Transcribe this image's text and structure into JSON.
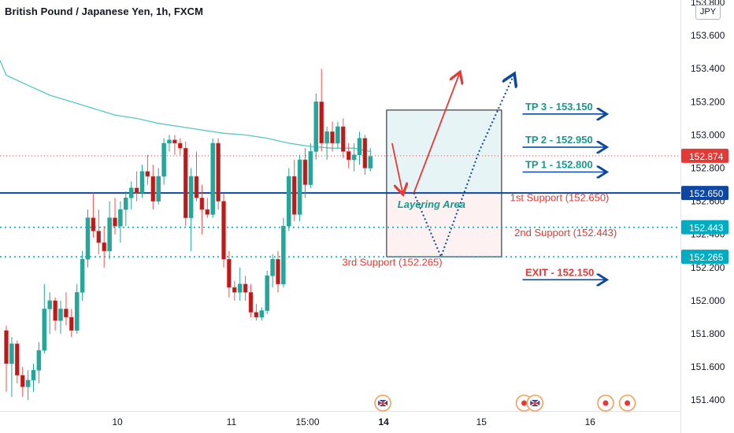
{
  "header": {
    "title": "British Pound / Japanese Yen, 1h, FXCM",
    "currency": "JPY"
  },
  "colors": {
    "up": "#26a69a",
    "down": "#ef5350",
    "candle_body_up": "#26a69a",
    "candle_body_down": "#b71c1c",
    "ma": "#55c7c2",
    "blue": "#0d47a1",
    "red": "#e53935",
    "teal_text": "#17998c",
    "support_text": "#e53935"
  },
  "chart_data": {
    "type": "candlestick",
    "y_axis": {
      "min": 151.4,
      "max": 153.8,
      "ticks": [
        151.4,
        151.6,
        151.8,
        152.0,
        152.2,
        152.4,
        152.6,
        152.8,
        153.0,
        153.2,
        153.4,
        153.6,
        153.8
      ],
      "tick_labels": [
        "151.400",
        "151.600",
        "151.800",
        "152.000",
        "152.200",
        "152.400",
        "152.600",
        "152.800",
        "153.000",
        "153.200",
        "153.400",
        "153.600",
        "153.800"
      ]
    },
    "x_axis": {
      "labels": [
        {
          "text": "10",
          "t": 20
        },
        {
          "text": "11",
          "t": 41
        },
        {
          "text": "15:00",
          "t": 55
        },
        {
          "text": "14",
          "t": 69
        },
        {
          "text": "15",
          "t": 87
        },
        {
          "text": "16",
          "t": 107
        }
      ],
      "t_min": 0,
      "t_max": 126
    },
    "candles": [
      {
        "t": 0,
        "o": 151.82,
        "h": 151.85,
        "l": 151.45,
        "c": 151.62
      },
      {
        "t": 1,
        "o": 151.62,
        "h": 151.78,
        "l": 151.42,
        "c": 151.74
      },
      {
        "t": 2,
        "o": 151.74,
        "h": 151.76,
        "l": 151.5,
        "c": 151.55
      },
      {
        "t": 3,
        "o": 151.55,
        "h": 151.6,
        "l": 151.42,
        "c": 151.48
      },
      {
        "t": 4,
        "o": 151.48,
        "h": 151.58,
        "l": 151.4,
        "c": 151.52
      },
      {
        "t": 5,
        "o": 151.52,
        "h": 151.62,
        "l": 151.45,
        "c": 151.58
      },
      {
        "t": 6,
        "o": 151.58,
        "h": 151.75,
        "l": 151.5,
        "c": 151.7
      },
      {
        "t": 7,
        "o": 151.7,
        "h": 152.1,
        "l": 151.68,
        "c": 151.95
      },
      {
        "t": 8,
        "o": 151.95,
        "h": 152.05,
        "l": 151.8,
        "c": 152.0
      },
      {
        "t": 9,
        "o": 152.0,
        "h": 152.02,
        "l": 151.82,
        "c": 151.88
      },
      {
        "t": 10,
        "o": 151.88,
        "h": 152.0,
        "l": 151.8,
        "c": 151.95
      },
      {
        "t": 11,
        "o": 151.95,
        "h": 152.05,
        "l": 151.85,
        "c": 151.9
      },
      {
        "t": 12,
        "o": 151.9,
        "h": 151.95,
        "l": 151.78,
        "c": 151.82
      },
      {
        "t": 13,
        "o": 151.82,
        "h": 152.1,
        "l": 151.8,
        "c": 152.05
      },
      {
        "t": 14,
        "o": 152.05,
        "h": 152.3,
        "l": 152.0,
        "c": 152.25
      },
      {
        "t": 15,
        "o": 152.25,
        "h": 152.55,
        "l": 152.2,
        "c": 152.5
      },
      {
        "t": 16,
        "o": 152.5,
        "h": 152.65,
        "l": 152.38,
        "c": 152.42
      },
      {
        "t": 17,
        "o": 152.42,
        "h": 152.55,
        "l": 152.28,
        "c": 152.35
      },
      {
        "t": 18,
        "o": 152.35,
        "h": 152.45,
        "l": 152.2,
        "c": 152.3
      },
      {
        "t": 19,
        "o": 152.3,
        "h": 152.6,
        "l": 152.25,
        "c": 152.5
      },
      {
        "t": 20,
        "o": 152.5,
        "h": 152.62,
        "l": 152.4,
        "c": 152.45
      },
      {
        "t": 21,
        "o": 152.45,
        "h": 152.6,
        "l": 152.35,
        "c": 152.55
      },
      {
        "t": 22,
        "o": 152.55,
        "h": 152.66,
        "l": 152.45,
        "c": 152.62
      },
      {
        "t": 23,
        "o": 152.62,
        "h": 152.72,
        "l": 152.55,
        "c": 152.68
      },
      {
        "t": 24,
        "o": 152.68,
        "h": 152.78,
        "l": 152.6,
        "c": 152.65
      },
      {
        "t": 25,
        "o": 152.65,
        "h": 152.82,
        "l": 152.62,
        "c": 152.78
      },
      {
        "t": 26,
        "o": 152.78,
        "h": 152.88,
        "l": 152.7,
        "c": 152.75
      },
      {
        "t": 27,
        "o": 152.75,
        "h": 152.82,
        "l": 152.55,
        "c": 152.6
      },
      {
        "t": 28,
        "o": 152.6,
        "h": 152.8,
        "l": 152.58,
        "c": 152.75
      },
      {
        "t": 29,
        "o": 152.75,
        "h": 152.98,
        "l": 152.7,
        "c": 152.95
      },
      {
        "t": 30,
        "o": 152.95,
        "h": 153.0,
        "l": 152.9,
        "c": 152.97
      },
      {
        "t": 31,
        "o": 152.97,
        "h": 153.0,
        "l": 152.88,
        "c": 152.95
      },
      {
        "t": 32,
        "o": 152.95,
        "h": 152.98,
        "l": 152.88,
        "c": 152.92
      },
      {
        "t": 33,
        "o": 152.92,
        "h": 152.96,
        "l": 152.45,
        "c": 152.5
      },
      {
        "t": 34,
        "o": 152.5,
        "h": 152.8,
        "l": 152.3,
        "c": 152.75
      },
      {
        "t": 35,
        "o": 152.75,
        "h": 152.9,
        "l": 152.6,
        "c": 152.62
      },
      {
        "t": 36,
        "o": 152.62,
        "h": 152.7,
        "l": 152.4,
        "c": 152.55
      },
      {
        "t": 37,
        "o": 152.55,
        "h": 152.62,
        "l": 152.5,
        "c": 152.52
      },
      {
        "t": 38,
        "o": 152.52,
        "h": 152.98,
        "l": 152.5,
        "c": 152.95
      },
      {
        "t": 39,
        "o": 152.95,
        "h": 152.98,
        "l": 152.55,
        "c": 152.6
      },
      {
        "t": 40,
        "o": 152.6,
        "h": 152.65,
        "l": 152.2,
        "c": 152.25
      },
      {
        "t": 41,
        "o": 152.25,
        "h": 152.3,
        "l": 152.02,
        "c": 152.08
      },
      {
        "t": 42,
        "o": 152.08,
        "h": 152.12,
        "l": 152.0,
        "c": 152.05
      },
      {
        "t": 43,
        "o": 152.05,
        "h": 152.2,
        "l": 152.0,
        "c": 152.1
      },
      {
        "t": 44,
        "o": 152.1,
        "h": 152.15,
        "l": 152.0,
        "c": 152.05
      },
      {
        "t": 45,
        "o": 152.05,
        "h": 152.1,
        "l": 151.9,
        "c": 151.93
      },
      {
        "t": 46,
        "o": 151.93,
        "h": 151.98,
        "l": 151.88,
        "c": 151.9
      },
      {
        "t": 47,
        "o": 151.9,
        "h": 151.96,
        "l": 151.88,
        "c": 151.94
      },
      {
        "t": 48,
        "o": 151.94,
        "h": 152.18,
        "l": 151.92,
        "c": 152.15
      },
      {
        "t": 49,
        "o": 152.15,
        "h": 152.28,
        "l": 152.08,
        "c": 152.25
      },
      {
        "t": 50,
        "o": 152.25,
        "h": 152.3,
        "l": 152.05,
        "c": 152.1
      },
      {
        "t": 51,
        "o": 152.1,
        "h": 152.5,
        "l": 152.08,
        "c": 152.45
      },
      {
        "t": 52,
        "o": 152.45,
        "h": 152.8,
        "l": 152.42,
        "c": 152.75
      },
      {
        "t": 53,
        "o": 152.75,
        "h": 152.85,
        "l": 152.48,
        "c": 152.52
      },
      {
        "t": 54,
        "o": 152.52,
        "h": 152.88,
        "l": 152.48,
        "c": 152.85
      },
      {
        "t": 55,
        "o": 152.85,
        "h": 152.92,
        "l": 152.62,
        "c": 152.7
      },
      {
        "t": 56,
        "o": 152.7,
        "h": 152.95,
        "l": 152.68,
        "c": 152.9
      },
      {
        "t": 57,
        "o": 152.9,
        "h": 153.25,
        "l": 152.85,
        "c": 153.2
      },
      {
        "t": 58,
        "o": 153.2,
        "h": 153.4,
        "l": 152.9,
        "c": 152.95
      },
      {
        "t": 59,
        "o": 152.95,
        "h": 153.05,
        "l": 152.85,
        "c": 153.02
      },
      {
        "t": 60,
        "o": 153.02,
        "h": 153.08,
        "l": 152.9,
        "c": 152.95
      },
      {
        "t": 61,
        "o": 152.95,
        "h": 153.08,
        "l": 152.92,
        "c": 153.05
      },
      {
        "t": 62,
        "o": 153.05,
        "h": 153.1,
        "l": 152.86,
        "c": 152.9
      },
      {
        "t": 63,
        "o": 152.9,
        "h": 152.95,
        "l": 152.8,
        "c": 152.85
      },
      {
        "t": 64,
        "o": 152.85,
        "h": 152.95,
        "l": 152.78,
        "c": 152.88
      },
      {
        "t": 65,
        "o": 152.88,
        "h": 153.02,
        "l": 152.82,
        "c": 152.98
      },
      {
        "t": 66,
        "o": 152.98,
        "h": 153.0,
        "l": 152.76,
        "c": 152.8
      },
      {
        "t": 67,
        "o": 152.8,
        "h": 152.92,
        "l": 152.78,
        "c": 152.87
      }
    ],
    "ma_points": [
      [
        0,
        153.36
      ],
      [
        4,
        153.3
      ],
      [
        8,
        153.24
      ],
      [
        12,
        153.2
      ],
      [
        16,
        153.16
      ],
      [
        20,
        153.12
      ],
      [
        24,
        153.1
      ],
      [
        28,
        153.07
      ],
      [
        32,
        153.05
      ],
      [
        36,
        153.03
      ],
      [
        40,
        153.01
      ],
      [
        44,
        153.0
      ],
      [
        48,
        152.98
      ],
      [
        52,
        152.95
      ],
      [
        56,
        152.93
      ],
      [
        60,
        152.92
      ],
      [
        64,
        152.92
      ],
      [
        67,
        152.9
      ]
    ],
    "levels": [
      {
        "price": 152.65,
        "label": "152.650",
        "style": "solid",
        "color": "#0d47a1"
      },
      {
        "price": 152.443,
        "label": "152.443",
        "style": "dotted",
        "color": "#00acc1"
      },
      {
        "price": 152.265,
        "label": "152.265",
        "style": "dotted",
        "color": "#00acc1"
      },
      {
        "price": 152.874,
        "label": "152.874",
        "style": "dotted-red",
        "color": "#e53935"
      }
    ],
    "zones": {
      "profit": {
        "t0": 71,
        "t1": 91,
        "top": 153.15,
        "bottom": 152.65
      },
      "risk": {
        "t0": 71,
        "t1": 91,
        "top": 152.65,
        "bottom": 152.265
      }
    },
    "annotations": {
      "layering_area": "Layering Area",
      "support_1": "1st Support (152.650)",
      "support_2": "2nd Support (152.443)",
      "support_3": "3rd Support (152.265)",
      "tp1": "TP 1 - 152.800",
      "tp2": "TP 2 - 152.950",
      "tp3": "TP 3 - 153.150",
      "exit": "EXIT - 152.150"
    },
    "events": [
      {
        "t": 69,
        "type": "uk-flag"
      },
      {
        "t": 95,
        "type": "red-dot"
      },
      {
        "t": 97,
        "type": "uk-flag"
      },
      {
        "t": 110,
        "type": "red-dot"
      },
      {
        "t": 114,
        "type": "red-dot"
      }
    ]
  }
}
